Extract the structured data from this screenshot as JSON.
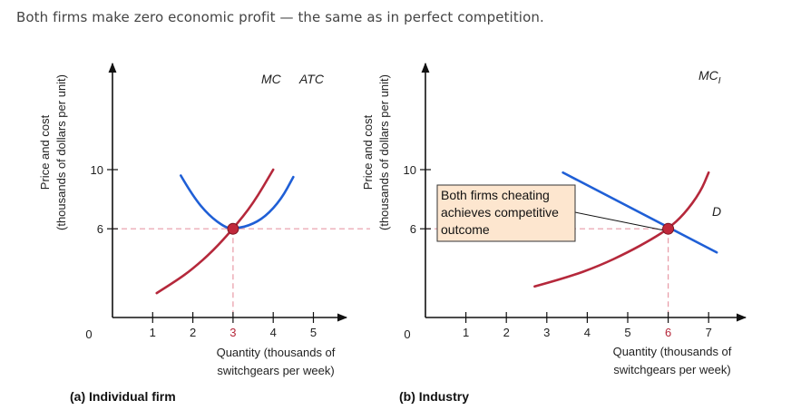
{
  "caption": "Both firms make zero economic profit — the same as in perfect competition.",
  "colors": {
    "mc": "#b5283b",
    "atc": "#1f5fd6",
    "demand": "#1f5fd6",
    "guide": "#e89aa6",
    "point": "#c0283b",
    "annotation_bg": "#fde6cf"
  },
  "chart_data": [
    {
      "type": "line",
      "title": "(a) Individual firm",
      "ylabel_lines": [
        "Price and cost",
        "(thousands of dollars per unit)"
      ],
      "xlabel_lines": [
        "Quantity (thousands of",
        "switchgears per week)"
      ],
      "origin_label": "0",
      "xlim": [
        0,
        5.8
      ],
      "ylim": [
        0,
        11.2
      ],
      "x_ticks": [
        1,
        2,
        3,
        4,
        5
      ],
      "x_tick_labels": [
        "1",
        "2",
        "3",
        "4",
        "5"
      ],
      "highlight_x_tick": "3",
      "y_ticks": [
        6,
        10
      ],
      "y_tick_labels": [
        "6",
        "10"
      ],
      "series": [
        {
          "name": "MC",
          "color": "#b5283b",
          "points": [
            [
              1.1,
              1.65
            ],
            [
              1.6,
              2.5
            ],
            [
              2.0,
              3.3
            ],
            [
              2.5,
              4.5
            ],
            [
              3.0,
              6.0
            ],
            [
              3.5,
              7.7
            ],
            [
              4.0,
              10.0
            ]
          ]
        },
        {
          "name": "ATC",
          "color": "#1f5fd6",
          "points": [
            [
              1.7,
              9.6
            ],
            [
              2.0,
              8.2
            ],
            [
              2.4,
              6.9
            ],
            [
              2.8,
              6.1
            ],
            [
              3.0,
              6.0
            ],
            [
              3.4,
              6.2
            ],
            [
              3.8,
              6.8
            ],
            [
              4.2,
              8.0
            ],
            [
              4.5,
              9.5
            ]
          ]
        }
      ],
      "equilibrium": {
        "x": 3,
        "y": 6
      }
    },
    {
      "type": "line",
      "title": "(b) Industry",
      "ylabel_lines": [
        "Price and cost",
        "(thousands of dollars per unit)"
      ],
      "xlabel_lines": [
        "Quantity (thousands of",
        "switchgears per week)"
      ],
      "origin_label": "0",
      "xlim": [
        0,
        8.0
      ],
      "ylim": [
        0,
        11.2
      ],
      "x_ticks": [
        1,
        2,
        3,
        4,
        5,
        6,
        7
      ],
      "x_tick_labels": [
        "1",
        "2",
        "3",
        "4",
        "5",
        "6",
        "7"
      ],
      "highlight_x_tick": "6",
      "y_ticks": [
        6,
        10
      ],
      "y_tick_labels": [
        "6",
        "10"
      ],
      "series": [
        {
          "name": "MC",
          "subscript": "I",
          "color": "#b5283b",
          "points": [
            [
              2.7,
              2.1
            ],
            [
              3.5,
              2.7
            ],
            [
              4.3,
              3.5
            ],
            [
              5.0,
              4.4
            ],
            [
              5.6,
              5.3
            ],
            [
              6.0,
              6.0
            ],
            [
              6.4,
              7.0
            ],
            [
              6.8,
              8.5
            ],
            [
              7.0,
              9.8
            ]
          ]
        },
        {
          "name": "D",
          "color": "#1f5fd6",
          "points": [
            [
              3.4,
              9.8
            ],
            [
              7.2,
              4.4
            ]
          ]
        }
      ],
      "equilibrium": {
        "x": 6,
        "y": 6
      },
      "annotation": {
        "lines": [
          "Both firms cheating",
          "achieves competitive",
          "outcome"
        ]
      }
    }
  ]
}
